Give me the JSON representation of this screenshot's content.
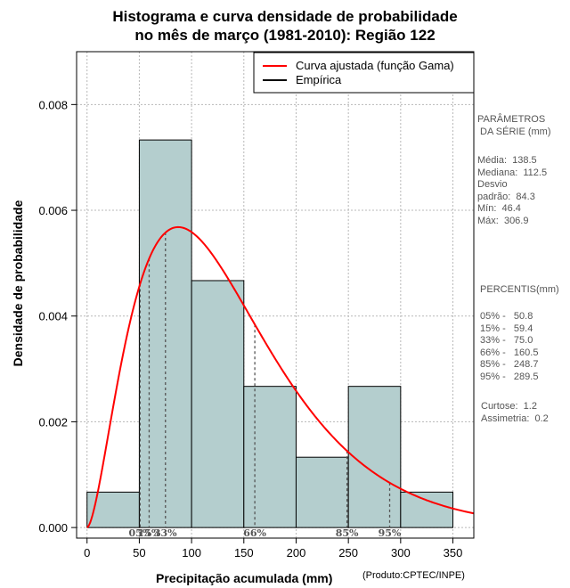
{
  "chart_data": {
    "type": "bar",
    "title_line1": "Histograma e curva densidade de probabilidade",
    "title_line2": "no mês de março (1981-2010): Região 122",
    "xlabel": "Precipitação acumulada (mm)",
    "ylabel": "Densidade de probabilidade",
    "source_note": "(Produto:CPTEC/INPE)",
    "xlim": [
      -10,
      370
    ],
    "ylim": [
      -0.0002,
      0.009
    ],
    "x_ticks": [
      0,
      50,
      100,
      150,
      200,
      250,
      300,
      350
    ],
    "x_tick_labels": [
      "0",
      "50",
      "100",
      "150",
      "200",
      "250",
      "300",
      "350"
    ],
    "y_ticks": [
      0,
      0.002,
      0.004,
      0.006,
      0.008
    ],
    "y_tick_labels": [
      "0.000",
      "0.002",
      "0.004",
      "0.006",
      "0.008"
    ],
    "bins": [
      {
        "start": 0,
        "end": 50,
        "density": 0.00067
      },
      {
        "start": 50,
        "end": 100,
        "density": 0.00733
      },
      {
        "start": 100,
        "end": 150,
        "density": 0.00467
      },
      {
        "start": 150,
        "end": 200,
        "density": 0.00267
      },
      {
        "start": 200,
        "end": 250,
        "density": 0.00133
      },
      {
        "start": 250,
        "end": 300,
        "density": 0.00267
      },
      {
        "start": 300,
        "end": 350,
        "density": 0.00067
      }
    ],
    "gamma_fit": {
      "shape": 2.7,
      "scale": 51.3
    },
    "legend": [
      {
        "label": "Curva ajustada (função Gama)",
        "color": "#ff0000"
      },
      {
        "label": "Empírica",
        "color": "#000000"
      }
    ],
    "percentile_markers": [
      {
        "label": "05%",
        "x": 50.8
      },
      {
        "label": "15%",
        "x": 59.4
      },
      {
        "label": "33%",
        "x": 75.0
      },
      {
        "label": "66%",
        "x": 160.5
      },
      {
        "label": "85%",
        "x": 248.7
      },
      {
        "label": "95%",
        "x": 289.5
      }
    ],
    "bar_color": "#b4cece",
    "curve_color": "#ff0000"
  },
  "side_panel": {
    "params_title": "PARÂMETROS\n DA SÉRIE (mm)",
    "params_values": "Média:  138.5\nMediana:  112.5\nDesvio\npadrão:  84.3\nMín:  46.4\nMáx:  306.9",
    "percentis_title": " PERCENTIS(mm)",
    "percentis_values": "05% -   50.8\n15% -   59.4\n33% -   75.0\n66% -   160.5\n85% -   248.7\n95% -   289.5",
    "stats_values": "Curtose:  1.2\nAssimetria:  0.2"
  }
}
